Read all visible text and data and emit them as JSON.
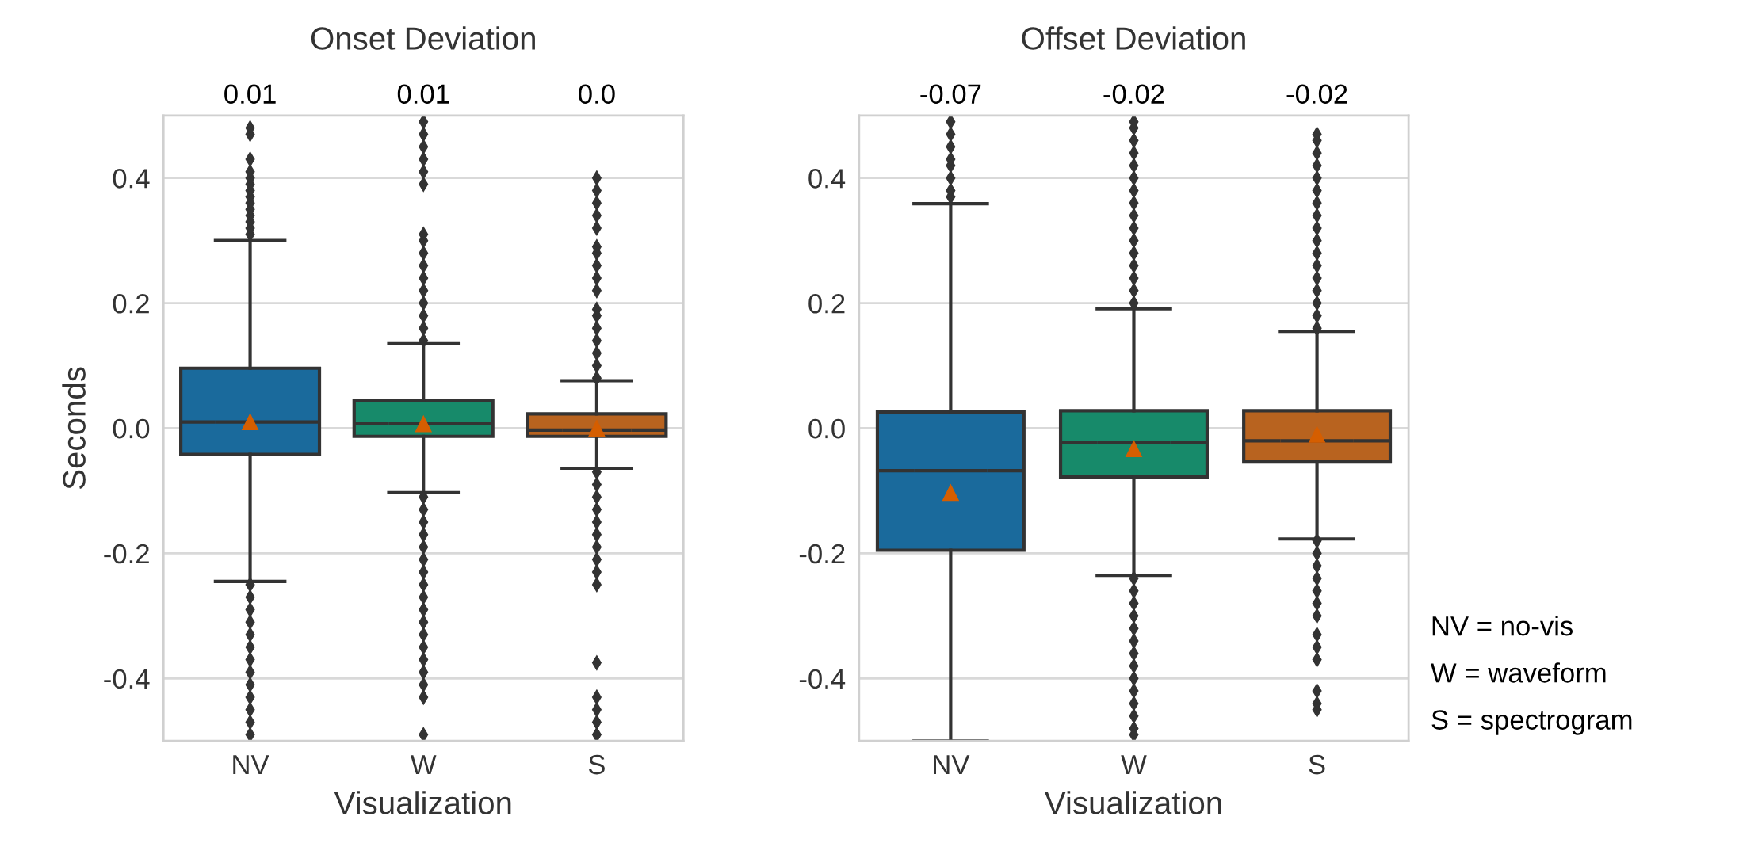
{
  "chart_data": [
    {
      "type": "box",
      "title": "Onset Deviation",
      "xlabel": "Visualization",
      "ylabel": "Seconds",
      "categories": [
        "NV",
        "W",
        "S"
      ],
      "colors": [
        "#1a6a9c",
        "#178a6a",
        "#b8631f"
      ],
      "ylim": [
        -0.5,
        0.5
      ],
      "yticks": [
        -0.4,
        -0.2,
        {
          "value": 0,
          "label": "0.0"
        },
        0.2,
        0.4
      ],
      "grid": "y",
      "marker": "diamond",
      "value_labels": [
        "0.01",
        "0.01",
        "0.0"
      ],
      "boxes": [
        {
          "low": -0.245,
          "q1": -0.042,
          "median": 0.01,
          "q3": 0.096,
          "high": 0.3,
          "mean": 0.01,
          "outliers": [
            0.31,
            0.32,
            0.33,
            0.34,
            0.35,
            0.36,
            0.37,
            0.38,
            0.39,
            0.4,
            0.41,
            0.43,
            0.47,
            0.48,
            -0.25,
            -0.27,
            -0.29,
            -0.31,
            -0.33,
            -0.35,
            -0.37,
            -0.39,
            -0.41,
            -0.43,
            -0.45,
            -0.47,
            -0.49
          ]
        },
        {
          "low": -0.103,
          "q1": -0.013,
          "median": 0.007,
          "q3": 0.045,
          "high": 0.135,
          "mean": 0.007,
          "outliers": [
            0.14,
            0.16,
            0.18,
            0.2,
            0.22,
            0.24,
            0.26,
            0.28,
            0.3,
            0.31,
            0.39,
            0.41,
            0.43,
            0.45,
            0.47,
            0.49,
            -0.11,
            -0.13,
            -0.15,
            -0.17,
            -0.19,
            -0.21,
            -0.23,
            -0.25,
            -0.27,
            -0.29,
            -0.31,
            -0.33,
            -0.35,
            -0.37,
            -0.39,
            -0.41,
            -0.43,
            -0.49
          ]
        },
        {
          "low": -0.064,
          "q1": -0.013,
          "median": -0.003,
          "q3": 0.023,
          "high": 0.076,
          "mean": 0.0,
          "outliers": [
            0.08,
            0.1,
            0.12,
            0.14,
            0.16,
            0.18,
            0.19,
            0.22,
            0.24,
            0.26,
            0.28,
            0.29,
            0.32,
            0.34,
            0.36,
            0.38,
            0.4,
            -0.07,
            -0.09,
            -0.11,
            -0.13,
            -0.15,
            -0.17,
            -0.19,
            -0.21,
            -0.23,
            -0.25,
            -0.375,
            -0.43,
            -0.45,
            -0.47,
            -0.49
          ]
        }
      ]
    },
    {
      "type": "box",
      "title": "Offset Deviation",
      "xlabel": "Visualization",
      "categories": [
        "NV",
        "W",
        "S"
      ],
      "colors": [
        "#1a6a9c",
        "#178a6a",
        "#b8631f"
      ],
      "ylim": [
        -0.5,
        0.5
      ],
      "yticks": [
        -0.4,
        -0.2,
        {
          "value": 0,
          "label": "0.0"
        },
        0.2,
        0.4
      ],
      "grid": "y",
      "marker": "diamond",
      "value_labels": [
        "-0.07",
        "-0.02",
        "-0.02"
      ],
      "annotations": [
        "NV = no-vis",
        "W = waveform",
        "S = spectrogram"
      ],
      "boxes": [
        {
          "low": -0.5,
          "q1": -0.195,
          "median": -0.068,
          "q3": 0.026,
          "high": 0.359,
          "mean": -0.103,
          "outliers": [
            0.37,
            0.38,
            0.4,
            0.42,
            0.43,
            0.45,
            0.47,
            0.49
          ]
        },
        {
          "low": -0.235,
          "q1": -0.078,
          "median": -0.023,
          "q3": 0.028,
          "high": 0.191,
          "mean": -0.033,
          "outliers": [
            0.2,
            0.22,
            0.24,
            0.26,
            0.28,
            0.3,
            0.32,
            0.34,
            0.36,
            0.38,
            0.4,
            0.42,
            0.44,
            0.46,
            0.48,
            0.49,
            -0.24,
            -0.26,
            -0.28,
            -0.3,
            -0.32,
            -0.34,
            -0.36,
            -0.38,
            -0.4,
            -0.42,
            -0.44,
            -0.46,
            -0.48,
            -0.49
          ]
        },
        {
          "low": -0.177,
          "q1": -0.054,
          "median": -0.02,
          "q3": 0.028,
          "high": 0.155,
          "mean": -0.01,
          "outliers": [
            0.16,
            0.18,
            0.2,
            0.22,
            0.24,
            0.26,
            0.28,
            0.3,
            0.32,
            0.34,
            0.36,
            0.38,
            0.4,
            0.42,
            0.44,
            0.46,
            0.47,
            -0.18,
            -0.2,
            -0.22,
            -0.24,
            -0.26,
            -0.28,
            -0.3,
            -0.33,
            -0.35,
            -0.37,
            -0.42,
            -0.44,
            -0.45
          ]
        }
      ]
    }
  ]
}
